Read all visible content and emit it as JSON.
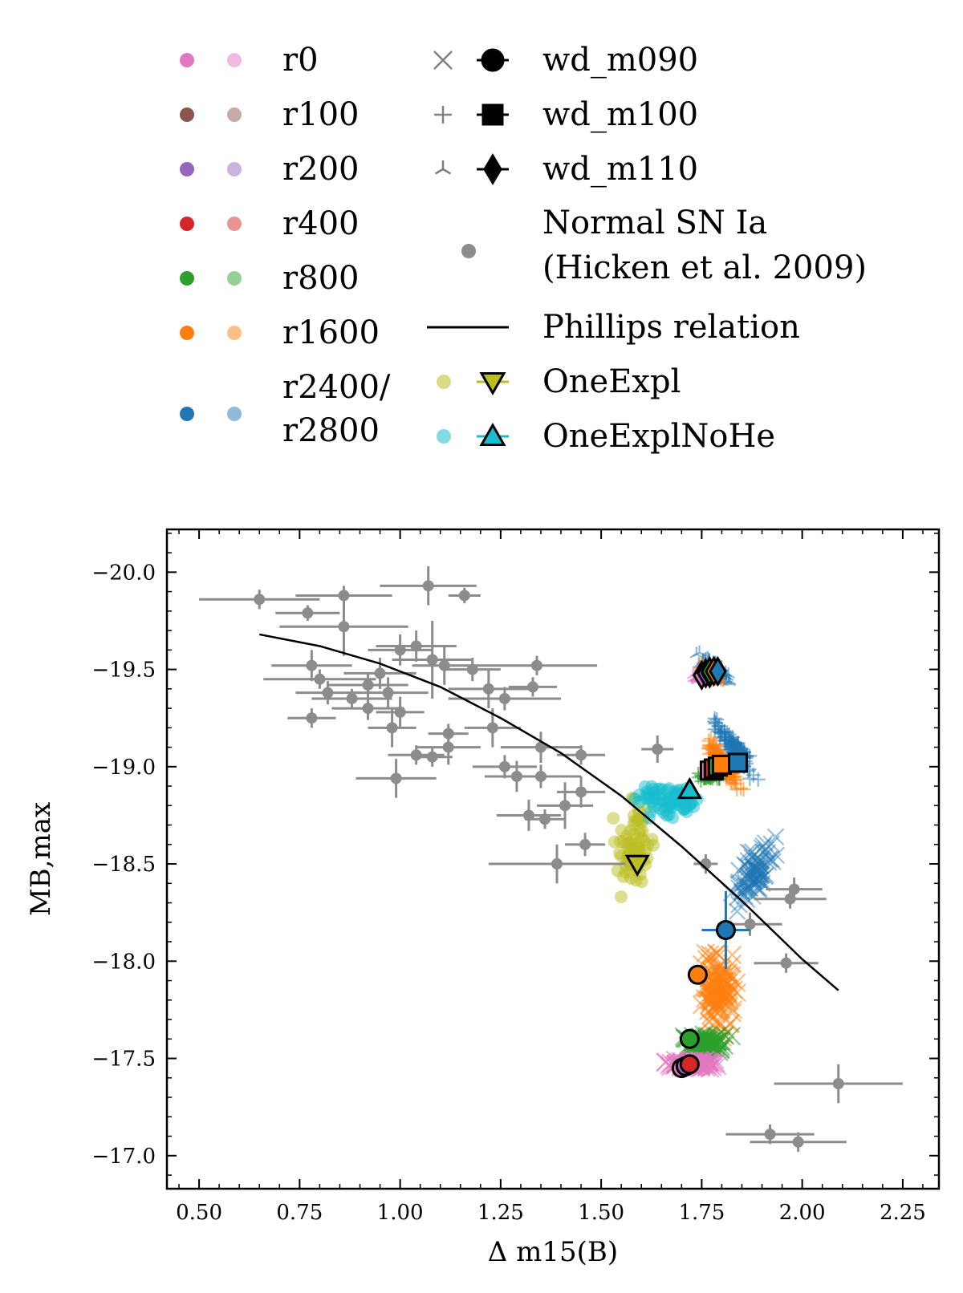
{
  "colors": {
    "r0": "#e377c2",
    "r100": "#8c564b",
    "r200": "#9467bd",
    "r400": "#d62728",
    "r800": "#2ca02c",
    "r1600": "#ff7f0e",
    "r2400": "#1f77b4",
    "hicken": "#8c8c8c",
    "oneexpl": "#bcbd22",
    "oneexplnohe": "#17becf"
  },
  "legend": {
    "colors": [
      {
        "label": "r0",
        "key": "r0"
      },
      {
        "label": "r100",
        "key": "r100"
      },
      {
        "label": "r200",
        "key": "r200"
      },
      {
        "label": "r400",
        "key": "r400"
      },
      {
        "label": "r800",
        "key": "r800"
      },
      {
        "label": "r1600",
        "key": "r1600"
      },
      {
        "label": "r2400/",
        "label2": "r2800",
        "key": "r2400"
      }
    ],
    "models": [
      {
        "label": "wd_m090",
        "marker": "circle",
        "small": "x"
      },
      {
        "label": "wd_m100",
        "marker": "square",
        "small": "plus"
      },
      {
        "label": "wd_m110",
        "marker": "diamond",
        "small": "tri"
      },
      {
        "label": "Normal SN Ia",
        "label2": "(Hicken et al. 2009)",
        "marker": "dot"
      },
      {
        "label": "Phillips relation",
        "marker": "line"
      },
      {
        "label": "OneExpl",
        "marker": "tri-down"
      },
      {
        "label": "OneExplNoHe",
        "marker": "tri-up"
      }
    ]
  },
  "chart_data": {
    "type": "scatter",
    "xlabel": "Δ m15(B)",
    "ylabel": "MB,max",
    "xlim": [
      0.42,
      2.34
    ],
    "ylim": [
      -16.83,
      -20.22
    ],
    "y_inverted": true,
    "xticks": [
      0.5,
      0.75,
      1.0,
      1.25,
      1.5,
      1.75,
      2.0,
      2.25
    ],
    "yticks": [
      -20.0,
      -19.5,
      -19.0,
      -18.5,
      -18.0,
      -17.5,
      -17.0
    ],
    "phillips_relation": {
      "x": [
        0.65,
        0.8,
        0.95,
        1.1,
        1.25,
        1.4,
        1.55,
        1.7,
        1.85,
        2.0,
        2.09
      ],
      "y": [
        -19.68,
        -19.62,
        -19.53,
        -19.41,
        -19.25,
        -19.07,
        -18.85,
        -18.59,
        -18.31,
        -18.01,
        -17.85
      ]
    },
    "hicken": [
      {
        "x": 0.65,
        "y": -19.86,
        "xe": 0.15,
        "ye": 0.05
      },
      {
        "x": 0.77,
        "y": -19.79,
        "xe": 0.08,
        "ye": 0.04
      },
      {
        "x": 0.86,
        "y": -19.88,
        "xe": 0.12,
        "ye": 0.05
      },
      {
        "x": 0.86,
        "y": -19.72,
        "xe": 0.16,
        "ye": 0.15
      },
      {
        "x": 0.78,
        "y": -19.52,
        "xe": 0.1,
        "ye": 0.08
      },
      {
        "x": 0.8,
        "y": -19.45,
        "xe": 0.14,
        "ye": 0.05
      },
      {
        "x": 0.82,
        "y": -19.38,
        "xe": 0.08,
        "ye": 0.06
      },
      {
        "x": 0.88,
        "y": -19.35,
        "xe": 0.1,
        "ye": 0.05
      },
      {
        "x": 0.92,
        "y": -19.42,
        "xe": 0.1,
        "ye": 0.06
      },
      {
        "x": 0.92,
        "y": -19.3,
        "xe": 0.09,
        "ye": 0.06
      },
      {
        "x": 0.95,
        "y": -19.48,
        "xe": 0.09,
        "ye": 0.08
      },
      {
        "x": 0.97,
        "y": -19.38,
        "xe": 0.1,
        "ye": 0.08
      },
      {
        "x": 0.78,
        "y": -19.25,
        "xe": 0.06,
        "ye": 0.05
      },
      {
        "x": 0.98,
        "y": -19.2,
        "xe": 0.06,
        "ye": 0.1
      },
      {
        "x": 1.0,
        "y": -19.28,
        "xe": 0.06,
        "ye": 0.08
      },
      {
        "x": 1.0,
        "y": -19.6,
        "xe": 0.08,
        "ye": 0.08
      },
      {
        "x": 1.04,
        "y": -19.62,
        "xe": 0.1,
        "ye": 0.08
      },
      {
        "x": 1.07,
        "y": -19.93,
        "xe": 0.12,
        "ye": 0.1
      },
      {
        "x": 1.16,
        "y": -19.88,
        "xe": 0.04,
        "ye": 0.04
      },
      {
        "x": 1.08,
        "y": -19.55,
        "xe": 0.1,
        "ye": 0.2
      },
      {
        "x": 1.11,
        "y": -19.52,
        "xe": 0.08,
        "ye": 0.1
      },
      {
        "x": 1.18,
        "y": -19.5,
        "xe": 0.07,
        "ye": 0.06
      },
      {
        "x": 1.22,
        "y": -19.4,
        "xe": 0.1,
        "ye": 0.1
      },
      {
        "x": 1.26,
        "y": -19.35,
        "xe": 0.14,
        "ye": 0.06
      },
      {
        "x": 1.34,
        "y": -19.52,
        "xe": 0.15,
        "ye": 0.05
      },
      {
        "x": 1.33,
        "y": -19.41,
        "xe": 0.06,
        "ye": 0.05
      },
      {
        "x": 0.99,
        "y": -18.94,
        "xe": 0.1,
        "ye": 0.1
      },
      {
        "x": 1.04,
        "y": -19.06,
        "xe": 0.07,
        "ye": 0.05
      },
      {
        "x": 1.08,
        "y": -19.05,
        "xe": 0.05,
        "ye": 0.05
      },
      {
        "x": 1.12,
        "y": -19.1,
        "xe": 0.08,
        "ye": 0.09
      },
      {
        "x": 1.12,
        "y": -19.17,
        "xe": 0.05,
        "ye": 0.05
      },
      {
        "x": 1.23,
        "y": -19.2,
        "xe": 0.07,
        "ye": 0.1
      },
      {
        "x": 1.26,
        "y": -19.0,
        "xe": 0.08,
        "ye": 0.06
      },
      {
        "x": 1.29,
        "y": -18.95,
        "xe": 0.08,
        "ye": 0.08
      },
      {
        "x": 1.35,
        "y": -19.1,
        "xe": 0.1,
        "ye": 0.08
      },
      {
        "x": 1.35,
        "y": -18.95,
        "xe": 0.1,
        "ye": 0.06
      },
      {
        "x": 1.32,
        "y": -18.75,
        "xe": 0.08,
        "ye": 0.08
      },
      {
        "x": 1.36,
        "y": -18.73,
        "xe": 0.05,
        "ye": 0.05
      },
      {
        "x": 1.41,
        "y": -18.8,
        "xe": 0.07,
        "ye": 0.12
      },
      {
        "x": 1.46,
        "y": -18.6,
        "xe": 0.05,
        "ye": 0.06
      },
      {
        "x": 1.39,
        "y": -18.5,
        "xe": 0.17,
        "ye": 0.1
      },
      {
        "x": 1.45,
        "y": -18.87,
        "xe": 0.06,
        "ye": 0.08
      },
      {
        "x": 1.45,
        "y": -19.06,
        "xe": 0.06,
        "ye": 0.05
      },
      {
        "x": 1.64,
        "y": -19.09,
        "xe": 0.04,
        "ye": 0.07
      },
      {
        "x": 1.76,
        "y": -18.5,
        "xe": 0.03,
        "ye": 0.05
      },
      {
        "x": 1.87,
        "y": -18.19,
        "xe": 0.08,
        "ye": 0.06
      },
      {
        "x": 1.98,
        "y": -18.37,
        "xe": 0.07,
        "ye": 0.06
      },
      {
        "x": 1.97,
        "y": -18.32,
        "xe": 0.09,
        "ye": 0.05
      },
      {
        "x": 1.96,
        "y": -17.99,
        "xe": 0.08,
        "ye": 0.05
      },
      {
        "x": 2.09,
        "y": -17.37,
        "xe": 0.16,
        "ye": 0.1
      },
      {
        "x": 1.92,
        "y": -17.11,
        "xe": 0.11,
        "ye": 0.05
      },
      {
        "x": 1.99,
        "y": -17.07,
        "xe": 0.12,
        "ye": 0.05
      }
    ],
    "wd_m090": [
      {
        "key": "r0",
        "x": 1.7,
        "y": -17.45
      },
      {
        "key": "r100",
        "x": 1.71,
        "y": -17.46
      },
      {
        "key": "r200",
        "x": 1.71,
        "y": -17.46
      },
      {
        "key": "r400",
        "x": 1.72,
        "y": -17.47
      },
      {
        "key": "r800",
        "x": 1.72,
        "y": -17.6
      },
      {
        "key": "r1600",
        "x": 1.74,
        "y": -17.93
      },
      {
        "key": "r2400",
        "x": 1.81,
        "y": -18.16,
        "xe": 0.06,
        "ye": 0.2
      }
    ],
    "wd_m100": [
      {
        "key": "r0",
        "x": 1.77,
        "y": -18.98
      },
      {
        "key": "r100",
        "x": 1.78,
        "y": -18.98
      },
      {
        "key": "r200",
        "x": 1.78,
        "y": -18.99
      },
      {
        "key": "r400",
        "x": 1.78,
        "y": -18.99
      },
      {
        "key": "r800",
        "x": 1.79,
        "y": -19.0
      },
      {
        "key": "r1600",
        "x": 1.8,
        "y": -19.01
      },
      {
        "key": "r2400",
        "x": 1.84,
        "y": -19.02
      }
    ],
    "wd_m110": [
      {
        "key": "r0",
        "x": 1.75,
        "y": -19.47
      },
      {
        "key": "r100",
        "x": 1.76,
        "y": -19.48
      },
      {
        "key": "r200",
        "x": 1.76,
        "y": -19.48
      },
      {
        "key": "r400",
        "x": 1.77,
        "y": -19.48
      },
      {
        "key": "r800",
        "x": 1.77,
        "y": -19.49
      },
      {
        "key": "r1600",
        "x": 1.78,
        "y": -19.49
      },
      {
        "key": "r2400",
        "x": 1.79,
        "y": -19.49
      }
    ],
    "oneexpl": {
      "x": 1.59,
      "y": -18.5
    },
    "oneexplnohe": {
      "x": 1.72,
      "y": -18.88
    }
  }
}
